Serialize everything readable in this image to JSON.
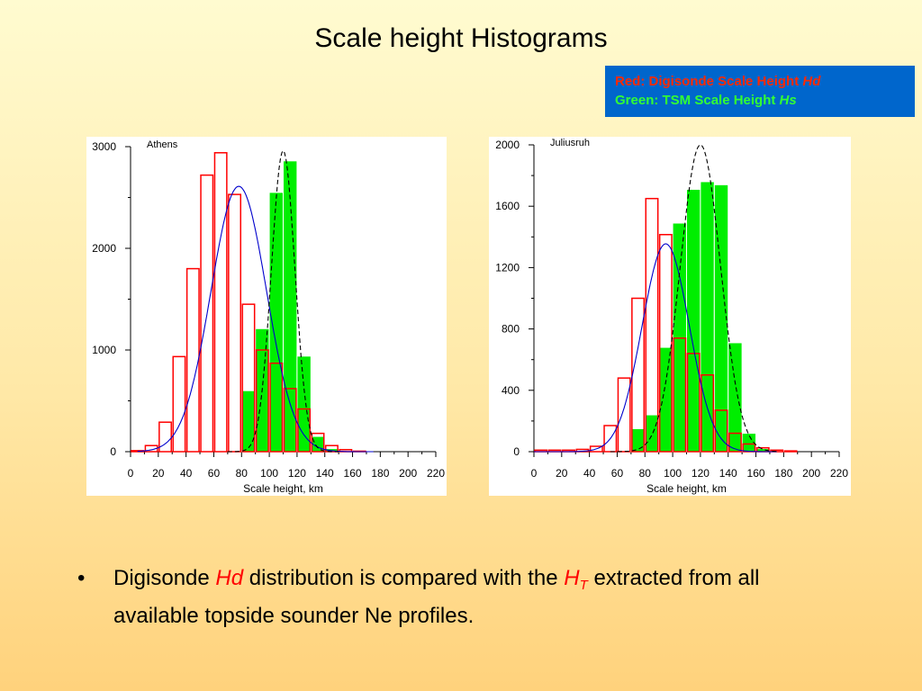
{
  "slide": {
    "title": "Scale height Histograms",
    "legend": {
      "red_prefix": "Red: Digisonde Scale Height ",
      "red_var": "Hd",
      "green_prefix": "Green: TSM Scale Height ",
      "green_var": "Hs"
    },
    "bullet": {
      "symbol": "•",
      "part1": "Digisonde ",
      "hd": "Hd",
      "part2": " distribution is compared with the ",
      "h": "H",
      "sub": "T",
      "part3": " extracted from all available topside sounder Ne profiles."
    }
  },
  "colors": {
    "red": "#ff0000",
    "green": "#00ee00",
    "blue_fit": "#0000cc",
    "dashed_fit": "#000000"
  },
  "chart_data": [
    {
      "type": "bar",
      "title": "Athens",
      "xlabel": "Scale height, km",
      "ylabel": "",
      "xlim": [
        0,
        220
      ],
      "ylim": [
        0,
        3000
      ],
      "x_ticks": [
        0,
        20,
        40,
        60,
        80,
        100,
        120,
        140,
        160,
        180,
        200,
        220
      ],
      "y_ticks": [
        0,
        1000,
        2000,
        3000
      ],
      "y_minor_ticks": [
        500,
        1500,
        2500
      ],
      "bin_width": 10,
      "series": [
        {
          "role": "Hd",
          "style": "red outlined bars",
          "bin_starts": [
            0,
            10,
            20,
            30,
            40,
            50,
            60,
            70,
            80,
            90,
            100,
            110,
            120,
            130,
            140,
            150,
            160,
            170
          ],
          "values": [
            10,
            60,
            290,
            935,
            1800,
            2720,
            2940,
            2530,
            1450,
            1000,
            870,
            620,
            420,
            180,
            60,
            20,
            5,
            0
          ]
        },
        {
          "role": "Hs",
          "style": "green filled bars",
          "bin_starts": [
            80,
            90,
            100,
            110,
            120,
            130,
            140,
            150,
            160,
            170
          ],
          "values": [
            600,
            1210,
            2550,
            2860,
            940,
            150,
            30,
            5,
            0,
            0
          ]
        }
      ],
      "fits": [
        {
          "style": "blue solid gaussian",
          "amplitude": 2610,
          "mean": 78,
          "sigma": 20,
          "x_range": [
            5,
            175
          ]
        },
        {
          "style": "black dashed gaussian",
          "amplitude": 2960,
          "mean": 110,
          "sigma": 8.5,
          "x_range": [
            70,
            150
          ]
        }
      ]
    },
    {
      "type": "bar",
      "title": "Juliusruh",
      "xlabel": "Scale height, km",
      "ylabel": "",
      "xlim": [
        0,
        220
      ],
      "ylim": [
        0,
        2000
      ],
      "x_ticks": [
        0,
        20,
        40,
        60,
        80,
        100,
        120,
        140,
        160,
        180,
        200,
        220
      ],
      "y_ticks": [
        0,
        400,
        800,
        1200,
        1600,
        2000
      ],
      "y_minor_ticks": [
        200,
        600,
        1000,
        1400,
        1800
      ],
      "bin_width": 10,
      "series": [
        {
          "role": "Hd",
          "style": "red outlined bars",
          "bin_starts": [
            0,
            10,
            20,
            30,
            40,
            50,
            60,
            70,
            80,
            90,
            100,
            110,
            120,
            130,
            140,
            150,
            160,
            170,
            180
          ],
          "values": [
            10,
            10,
            10,
            15,
            35,
            170,
            480,
            1000,
            1650,
            1415,
            740,
            640,
            500,
            270,
            120,
            50,
            25,
            10,
            5
          ]
        },
        {
          "role": "Hs",
          "style": "green filled bars",
          "bin_starts": [
            70,
            80,
            90,
            100,
            110,
            120,
            130,
            140,
            150,
            160,
            170
          ],
          "values": [
            150,
            240,
            680,
            1490,
            1710,
            1760,
            1740,
            710,
            120,
            20,
            5
          ]
        }
      ],
      "fits": [
        {
          "style": "blue solid gaussian",
          "amplitude": 1355,
          "mean": 95,
          "sigma": 17,
          "x_range": [
            0,
            175
          ]
        },
        {
          "style": "black dashed gaussian",
          "amplitude": 2000,
          "mean": 120,
          "sigma": 14.5,
          "x_range": [
            55,
            175
          ]
        }
      ]
    }
  ]
}
